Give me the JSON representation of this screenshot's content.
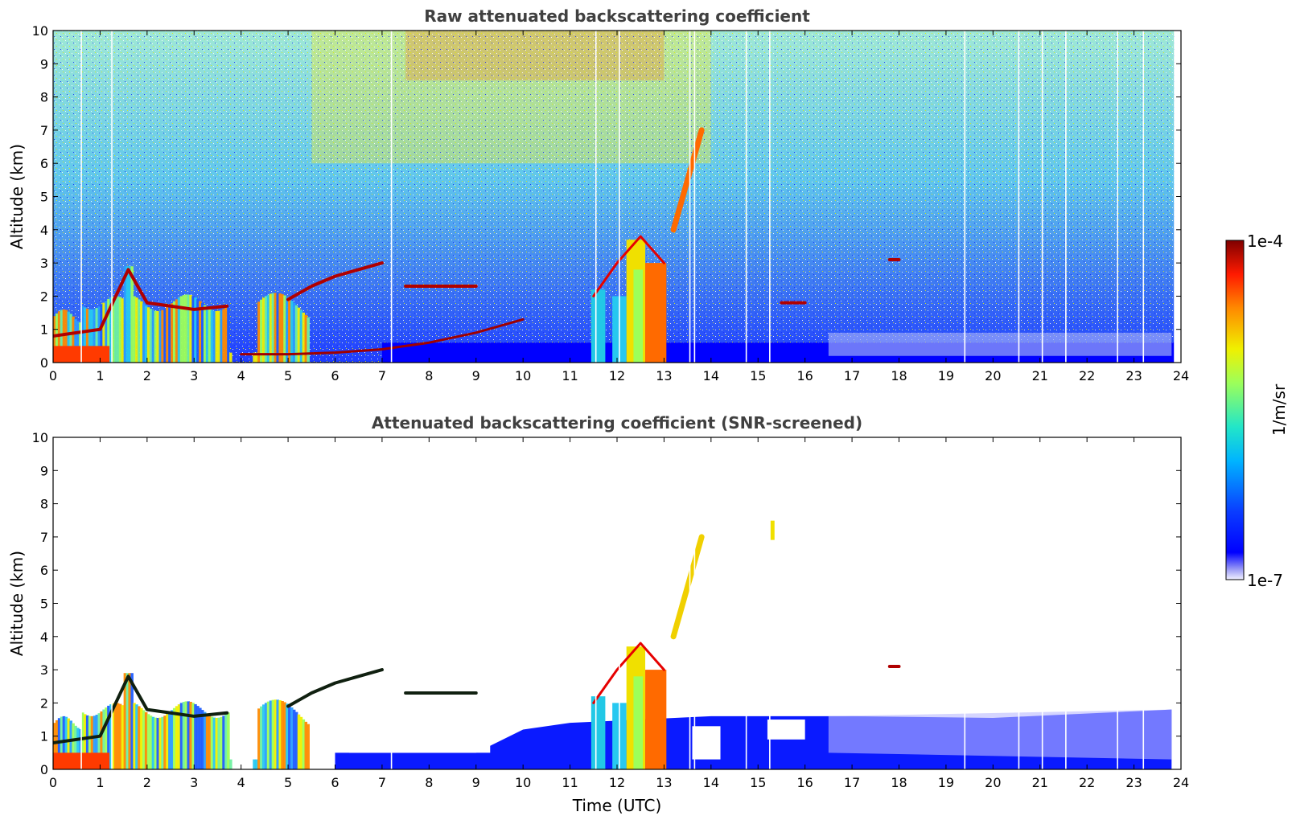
{
  "chart_data": [
    {
      "type": "heatmap",
      "title": "Raw attenuated backscattering coefficient",
      "xlabel": "",
      "ylabel": "Altitude (km)",
      "xlim": [
        0,
        24
      ],
      "ylim": [
        0,
        10
      ],
      "x_ticks": [
        "0",
        "1",
        "2",
        "3",
        "4",
        "5",
        "6",
        "7",
        "8",
        "9",
        "10",
        "11",
        "12",
        "13",
        "14",
        "15",
        "16",
        "17",
        "18",
        "19",
        "20",
        "21",
        "22",
        "23",
        "24"
      ],
      "y_ticks": [
        "0",
        "1",
        "2",
        "3",
        "4",
        "5",
        "6",
        "7",
        "8",
        "9",
        "10"
      ],
      "features": [
        {
          "type": "boundary_layer",
          "x": [
            0,
            1,
            1.6,
            2,
            2.5,
            3,
            3.7
          ],
          "y": [
            0.8,
            1.0,
            2.8,
            1.8,
            1.7,
            1.6,
            1.7
          ]
        },
        {
          "type": "elevated_layer",
          "x": [
            5.0,
            5.5,
            6.0,
            6.5,
            7.0
          ],
          "y": [
            1.9,
            2.3,
            2.6,
            2.8,
            3.0
          ]
        },
        {
          "type": "elevated_layer",
          "x": [
            7.5,
            8.0,
            8.5,
            9.0
          ],
          "y": [
            2.3,
            2.3,
            2.3,
            2.3
          ]
        },
        {
          "type": "rising_layer",
          "x": [
            4.0,
            5.0,
            6.0,
            7.0,
            8.0,
            9.0,
            10.0
          ],
          "y": [
            0.25,
            0.25,
            0.3,
            0.4,
            0.6,
            0.9,
            1.3
          ]
        },
        {
          "type": "convective_cloud",
          "x": [
            11.5,
            12.0,
            12.5,
            13.0
          ],
          "y": [
            2.0,
            3.0,
            3.8,
            3.0
          ]
        },
        {
          "type": "cirrus",
          "x": [
            13.2,
            13.5,
            13.8
          ],
          "y": [
            4.0,
            5.5,
            7.0
          ]
        },
        {
          "type": "elevated_layer",
          "x": [
            15.5,
            16.0
          ],
          "y": [
            1.8,
            1.8
          ]
        },
        {
          "type": "small_cloud",
          "x": [
            17.8,
            18.0
          ],
          "y": [
            3.1,
            3.1
          ]
        }
      ]
    },
    {
      "type": "heatmap",
      "title": "Attenuated backscattering coefficient (SNR-screened)",
      "xlabel": "Time (UTC)",
      "ylabel": "Altitude (km)",
      "xlim": [
        0,
        24
      ],
      "ylim": [
        0,
        10
      ],
      "x_ticks": [
        "0",
        "1",
        "2",
        "3",
        "4",
        "5",
        "6",
        "7",
        "8",
        "9",
        "10",
        "11",
        "12",
        "13",
        "14",
        "15",
        "16",
        "17",
        "18",
        "19",
        "20",
        "21",
        "22",
        "23",
        "24"
      ],
      "y_ticks": [
        "0",
        "1",
        "2",
        "3",
        "4",
        "5",
        "6",
        "7",
        "8",
        "9",
        "10"
      ],
      "features": [
        {
          "type": "boundary_layer",
          "x": [
            0,
            1,
            1.6,
            2,
            2.5,
            3,
            3.7
          ],
          "y": [
            0.8,
            1.0,
            2.8,
            1.8,
            1.7,
            1.6,
            1.7
          ]
        },
        {
          "type": "elevated_layer",
          "x": [
            5.0,
            5.5,
            6.0,
            6.5,
            7.0
          ],
          "y": [
            1.9,
            2.3,
            2.6,
            2.8,
            3.0
          ]
        },
        {
          "type": "elevated_layer",
          "x": [
            7.5,
            8.0,
            8.5,
            9.0
          ],
          "y": [
            2.3,
            2.3,
            2.3,
            2.3
          ]
        },
        {
          "type": "convective_cloud",
          "x": [
            11.5,
            12.0,
            12.5,
            13.0
          ],
          "y": [
            2.0,
            3.0,
            3.8,
            3.0
          ]
        },
        {
          "type": "cirrus",
          "x": [
            13.2,
            13.5,
            13.8
          ],
          "y": [
            4.0,
            5.5,
            7.0
          ]
        },
        {
          "type": "small_cloud",
          "x": [
            15.3
          ],
          "y": [
            7.2
          ]
        },
        {
          "type": "small_cloud",
          "x": [
            17.8,
            18.0
          ],
          "y": [
            3.1,
            3.1
          ]
        },
        {
          "type": "boundary_layer_low",
          "x": [
            14.5,
            17,
            20,
            23.8
          ],
          "y": [
            1.8,
            1.6,
            1.6,
            1.8
          ]
        }
      ]
    }
  ],
  "colorbar": {
    "label": "1/m/sr",
    "max_label": "1e-4",
    "min_label": "1e-7",
    "colormap": "jet",
    "scale": "log"
  }
}
